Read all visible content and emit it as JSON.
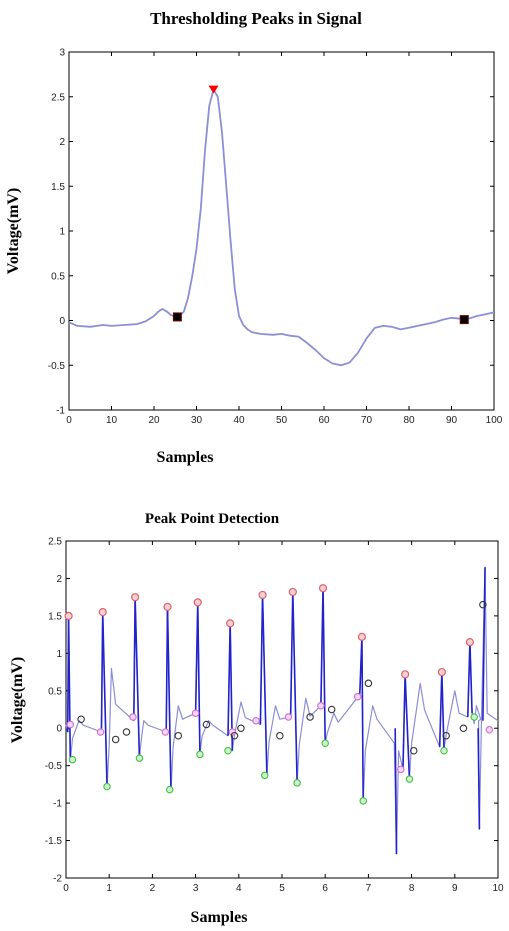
{
  "chart_data": [
    {
      "type": "line",
      "title": "Thresholding Peaks in Signal",
      "xlabel": "Samples",
      "ylabel": "Voltage(mV)",
      "xlim": [
        0,
        100
      ],
      "ylim": [
        -1,
        3
      ],
      "xticks": [
        0,
        10,
        20,
        30,
        40,
        50,
        60,
        70,
        80,
        90,
        100
      ],
      "yticks": [
        -1,
        -0.5,
        0,
        0.5,
        1,
        1.5,
        2,
        2.5,
        3
      ],
      "grid": false,
      "colors": {
        "line": "#8c8fd6",
        "peak": "#ff0000",
        "threshold": "#000000"
      },
      "series": [
        {
          "values": [
            [
              0,
              -0.02
            ],
            [
              2,
              -0.06
            ],
            [
              5,
              -0.07
            ],
            [
              8,
              -0.05
            ],
            [
              10,
              -0.06
            ],
            [
              13,
              -0.05
            ],
            [
              16,
              -0.04
            ],
            [
              18,
              -0.01
            ],
            [
              20,
              0.05
            ],
            [
              21,
              0.1
            ],
            [
              22,
              0.13
            ],
            [
              23,
              0.1
            ],
            [
              24,
              0.06
            ],
            [
              25,
              0.04
            ],
            [
              26,
              0.05
            ],
            [
              27,
              0.1
            ],
            [
              28,
              0.25
            ],
            [
              29,
              0.5
            ],
            [
              30,
              0.8
            ],
            [
              31,
              1.25
            ],
            [
              32,
              1.9
            ],
            [
              33,
              2.4
            ],
            [
              34,
              2.58
            ],
            [
              35,
              2.5
            ],
            [
              36,
              2.1
            ],
            [
              37,
              1.5
            ],
            [
              38,
              0.9
            ],
            [
              39,
              0.35
            ],
            [
              40,
              0.05
            ],
            [
              41,
              -0.05
            ],
            [
              42,
              -0.1
            ],
            [
              43,
              -0.13
            ],
            [
              45,
              -0.15
            ],
            [
              48,
              -0.16
            ],
            [
              50,
              -0.15
            ],
            [
              52,
              -0.17
            ],
            [
              54,
              -0.18
            ],
            [
              56,
              -0.25
            ],
            [
              58,
              -0.33
            ],
            [
              60,
              -0.42
            ],
            [
              62,
              -0.48
            ],
            [
              64,
              -0.5
            ],
            [
              66,
              -0.47
            ],
            [
              68,
              -0.36
            ],
            [
              70,
              -0.2
            ],
            [
              72,
              -0.08
            ],
            [
              74,
              -0.06
            ],
            [
              76,
              -0.07
            ],
            [
              78,
              -0.1
            ],
            [
              80,
              -0.08
            ],
            [
              82,
              -0.06
            ],
            [
              84,
              -0.04
            ],
            [
              86,
              -0.02
            ],
            [
              88,
              0.01
            ],
            [
              90,
              0.03
            ],
            [
              92,
              0.02
            ],
            [
              94,
              0.02
            ],
            [
              96,
              0.05
            ],
            [
              98,
              0.07
            ],
            [
              100,
              0.09
            ]
          ]
        }
      ],
      "peak_markers": [
        {
          "x": 34,
          "y": 2.58
        }
      ],
      "threshold_markers": [
        {
          "x": 25.5,
          "y": 0.04
        },
        {
          "x": 93,
          "y": 0.01
        }
      ]
    },
    {
      "type": "line",
      "title": "Peak Point Detection",
      "xlabel": "Samples",
      "ylabel": "Voltage(mV)",
      "xlim": [
        0,
        10
      ],
      "ylim": [
        -2,
        2.5
      ],
      "xticks": [
        0,
        1,
        2,
        3,
        4,
        5,
        6,
        7,
        8,
        9,
        10
      ],
      "yticks": [
        -2,
        -1.5,
        -1,
        -0.5,
        0,
        0.5,
        1,
        1.5,
        2,
        2.5
      ],
      "grid": false,
      "colors": {
        "signal": "#2222cc",
        "light": "#8c8fd6",
        "r_peak": "#e06070",
        "t_wave": "#d070d0",
        "s_point": "#40c040",
        "baseline": "#333333"
      },
      "beats": [
        {
          "r": [
            0.06,
            1.5
          ],
          "q": [
            0.04,
            -0.05
          ],
          "s": [
            0.1,
            -0.45
          ],
          "t": [
            0.3,
            0.1
          ]
        },
        {
          "r": [
            0.85,
            1.55
          ],
          "q": [
            0.82,
            -0.05
          ],
          "s": [
            0.95,
            -0.78
          ],
          "t": [
            1.05,
            0.8
          ]
        },
        {
          "r": [
            1.6,
            1.75
          ],
          "q": [
            1.57,
            0.1
          ],
          "s": [
            1.7,
            -0.4
          ],
          "t": [
            1.8,
            0.1
          ]
        },
        {
          "r": [
            2.35,
            1.62
          ],
          "q": [
            2.32,
            -0.05
          ],
          "s": [
            2.43,
            -0.83
          ],
          "t": [
            2.6,
            0.3
          ]
        },
        {
          "r": [
            3.05,
            1.68
          ],
          "q": [
            3.0,
            0.2
          ],
          "s": [
            3.1,
            -0.35
          ],
          "t": [
            3.3,
            0.1
          ]
        },
        {
          "r": [
            3.8,
            1.4
          ],
          "q": [
            3.75,
            -0.1
          ],
          "s": [
            3.85,
            -0.3
          ],
          "t": [
            4.05,
            0.35
          ]
        },
        {
          "r": [
            4.55,
            1.78
          ],
          "q": [
            4.5,
            0.05
          ],
          "s": [
            4.65,
            -0.62
          ],
          "t": [
            4.85,
            0.3
          ]
        },
        {
          "r": [
            5.25,
            1.82
          ],
          "q": [
            5.2,
            0.15
          ],
          "s": [
            5.35,
            -0.73
          ],
          "t": [
            5.55,
            0.4
          ]
        },
        {
          "r": [
            5.95,
            1.87
          ],
          "q": [
            5.9,
            0.3
          ],
          "s": [
            6.0,
            -0.2
          ],
          "t": [
            6.2,
            0.2
          ]
        },
        {
          "r": [
            6.85,
            1.22
          ],
          "q": [
            6.8,
            0.45
          ],
          "s": [
            6.88,
            -0.98
          ],
          "t": [
            7.1,
            0.3
          ]
        },
        {
          "r": [
            7.85,
            0.72
          ],
          "q": [
            7.8,
            -0.55
          ],
          "s": [
            7.95,
            -0.68
          ],
          "t": [
            8.2,
            0.6
          ]
        },
        {
          "r": [
            8.7,
            0.75
          ],
          "q": [
            8.65,
            -0.25
          ],
          "s": [
            8.75,
            -0.28
          ],
          "t": [
            9.0,
            0.5
          ]
        },
        {
          "r": [
            9.35,
            1.15
          ],
          "q": [
            9.3,
            0.15
          ],
          "s": [
            9.4,
            0.2
          ],
          "t": [
            9.5,
            0.3
          ]
        }
      ],
      "extra": {
        "spikes_down": [
          [
            7.65,
            -1.68
          ],
          [
            9.57,
            -1.35
          ]
        ],
        "big_r": [
          9.7,
          2.15
        ],
        "baseline_points": [
          [
            0.35,
            0.12
          ],
          [
            1.15,
            -0.15
          ],
          [
            1.4,
            -0.05
          ],
          [
            2.6,
            -0.1
          ],
          [
            3.25,
            0.05
          ],
          [
            3.9,
            -0.1
          ],
          [
            4.05,
            0.0
          ],
          [
            4.95,
            -0.1
          ],
          [
            5.65,
            0.15
          ],
          [
            6.15,
            0.25
          ],
          [
            7.0,
            0.6
          ],
          [
            8.05,
            -0.3
          ],
          [
            8.8,
            -0.1
          ],
          [
            9.2,
            0.0
          ],
          [
            9.65,
            1.65
          ]
        ],
        "t_points": [
          [
            0.1,
            0.05
          ],
          [
            0.8,
            -0.05
          ],
          [
            1.55,
            0.15
          ],
          [
            2.3,
            -0.05
          ],
          [
            3.0,
            0.2
          ],
          [
            3.85,
            -0.05
          ],
          [
            4.4,
            0.1
          ],
          [
            5.15,
            0.15
          ],
          [
            5.9,
            0.3
          ],
          [
            6.75,
            0.42
          ],
          [
            7.75,
            -0.55
          ],
          [
            9.8,
            -0.02
          ]
        ],
        "s_points": [
          [
            0.15,
            -0.42
          ],
          [
            0.95,
            -0.78
          ],
          [
            1.7,
            -0.4
          ],
          [
            2.4,
            -0.82
          ],
          [
            3.1,
            -0.35
          ],
          [
            3.75,
            -0.3
          ],
          [
            4.6,
            -0.63
          ],
          [
            5.35,
            -0.73
          ],
          [
            6.0,
            -0.2
          ],
          [
            6.88,
            -0.97
          ],
          [
            7.95,
            -0.68
          ],
          [
            8.75,
            -0.3
          ],
          [
            9.45,
            0.15
          ]
        ]
      }
    }
  ]
}
